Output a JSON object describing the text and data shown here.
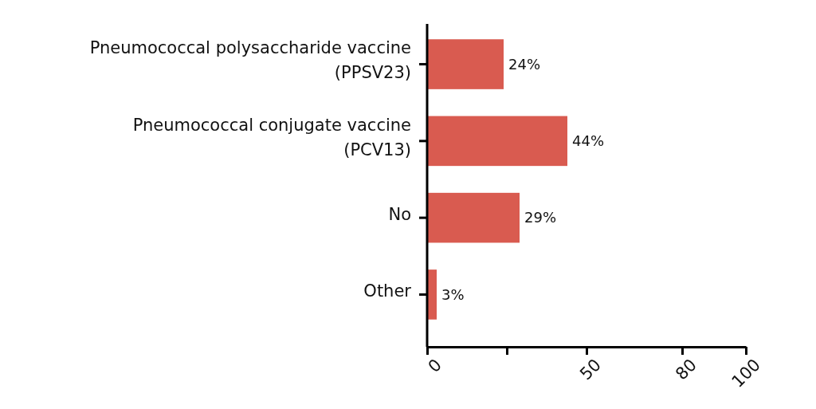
{
  "chart_data": {
    "type": "bar",
    "orientation": "horizontal",
    "categories": [
      "Pneumococcal polysaccharide vaccine\n(PPSV23)",
      "Pneumococcal conjugate vaccine\n(PCV13)",
      "No",
      "Other"
    ],
    "values": [
      24,
      44,
      29,
      3
    ],
    "color": "#d95b50",
    "xlim": [
      0,
      100
    ],
    "xticks": [
      0,
      {
        "value": 25,
        "label": null
      },
      50,
      80,
      100
    ],
    "value_labels": [
      "24%",
      "44%",
      "29%",
      "3%"
    ],
    "grid": false
  }
}
